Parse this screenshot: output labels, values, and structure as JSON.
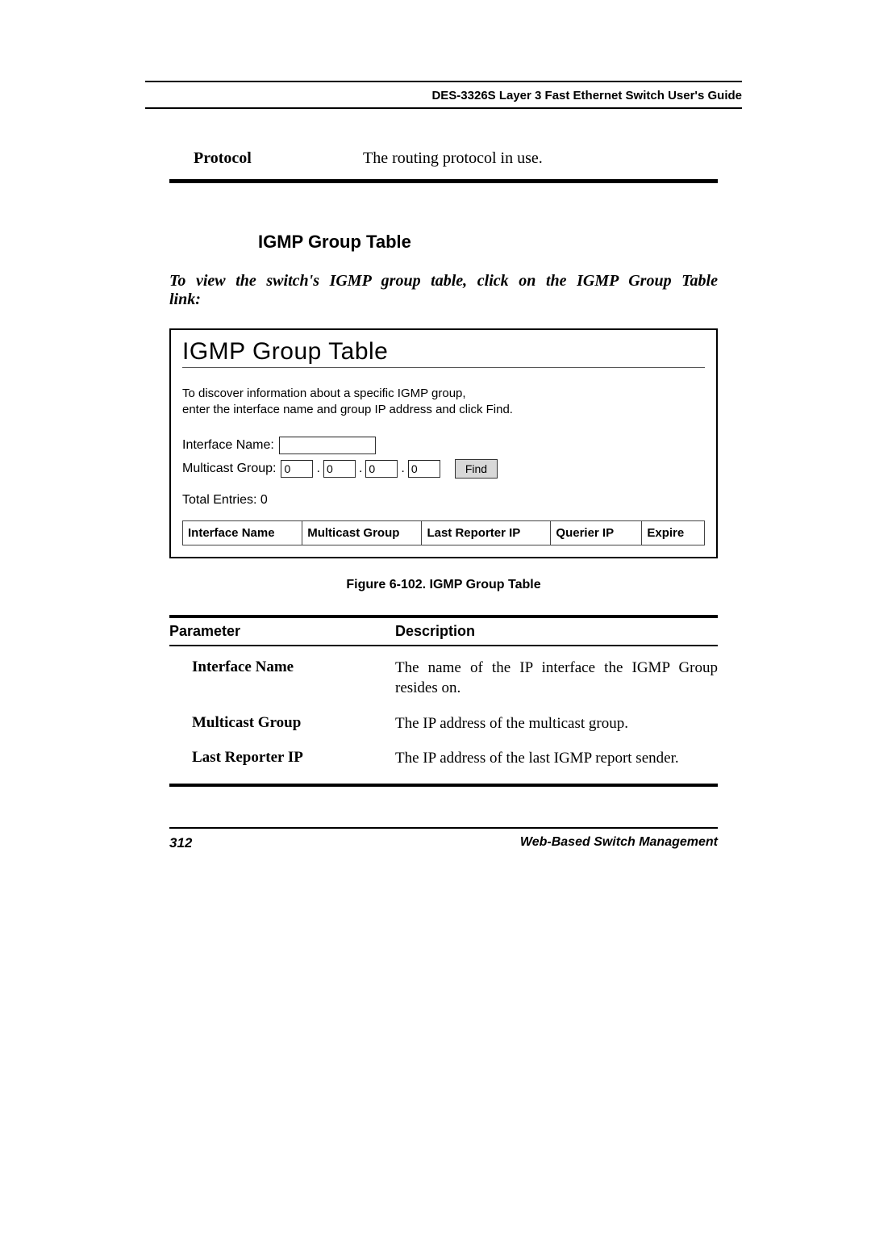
{
  "header": {
    "guide_title": "DES-3326S Layer 3 Fast Ethernet Switch User's Guide"
  },
  "protocol_row": {
    "label": "Protocol",
    "desc": "The routing protocol in use."
  },
  "section": {
    "heading": "IGMP Group Table",
    "intro": "To view the switch's IGMP group table, click on the IGMP Group Table link:"
  },
  "screenshot": {
    "title": "IGMP Group Table",
    "help_line1": "To discover information about a specific IGMP group,",
    "help_line2": "enter the interface name and group IP address and click Find.",
    "iface_label": "Interface Name:",
    "iface_value": "",
    "mgroup_label": "Multicast Group:",
    "ip": {
      "a": "0",
      "b": "0",
      "c": "0",
      "d": "0"
    },
    "find_btn": "Find",
    "total": "Total Entries: 0",
    "cols": {
      "c1": "Interface Name",
      "c2": "Multicast Group",
      "c3": "Last Reporter IP",
      "c4": "Querier IP",
      "c5": "Expire"
    }
  },
  "figure_caption": "Figure 6-102.  IGMP Group Table",
  "param_table": {
    "head_param": "Parameter",
    "head_desc": "Description",
    "rows": [
      {
        "p": "Interface Name",
        "d": "The name of the IP interface the IGMP Group resides on."
      },
      {
        "p": "Multicast Group",
        "d": "The IP address of the multicast group."
      },
      {
        "p": "Last Reporter IP",
        "d": "The IP address of the last IGMP report sender."
      }
    ]
  },
  "footer": {
    "page": "312",
    "section": "Web-Based Switch Management"
  },
  "colors": {
    "rule": "#000000",
    "btn_bg": "#d8d8d8",
    "border_gray": "#444444"
  }
}
